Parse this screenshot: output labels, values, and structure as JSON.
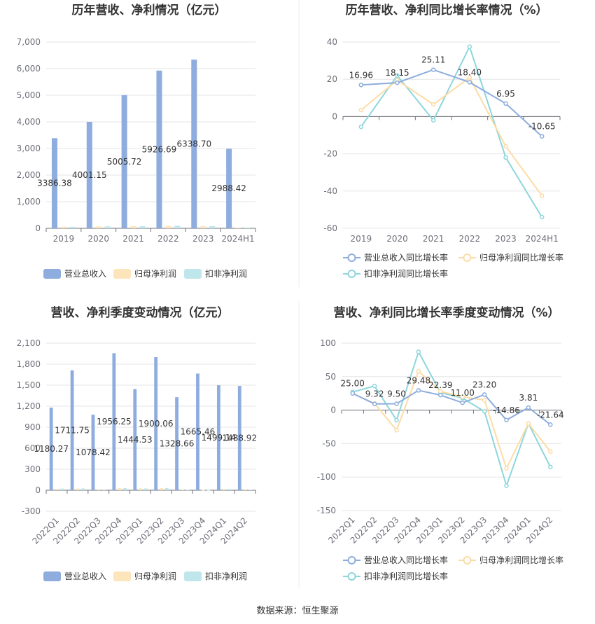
{
  "source_note": "数据来源：恒生聚源",
  "colors": {
    "revenue": "#8eadde",
    "net_profit": "#fde5bb",
    "deducted_profit": "#bfe6ea",
    "revenue_line": "#8eadde",
    "profit_line": "#fcdca6",
    "deducted_line": "#8ed6dc",
    "grid": "#e6e6e6",
    "axis": "#6e7079"
  },
  "chart_data": [
    {
      "id": "annual_amount",
      "type": "bar",
      "title": "历年营收、净利情况（亿元）",
      "categories": [
        "2019",
        "2020",
        "2021",
        "2022",
        "2023",
        "2024H1"
      ],
      "yticks": [
        "0",
        "1,000",
        "2,000",
        "3,000",
        "4,000",
        "5,000",
        "6,000",
        "7,000"
      ],
      "ylim": [
        0,
        7000
      ],
      "series": [
        {
          "name": "营业总收入",
          "values": [
            3386.38,
            4001.15,
            5005.72,
            5926.69,
            6338.7,
            2988.42
          ],
          "labels": [
            "3386.38",
            "4001.15",
            "5005.72",
            "5926.69",
            "6338.70",
            "2988.42"
          ]
        },
        {
          "name": "归母净利润",
          "values": [
            62.0,
            73.0,
            78.0,
            92.0,
            78.0,
            27.0
          ]
        },
        {
          "name": "扣非净利润",
          "values": [
            60.0,
            72.0,
            78.0,
            100.0,
            80.0,
            25.0
          ]
        }
      ],
      "legend": [
        "营业总收入",
        "归母净利润",
        "扣非净利润"
      ]
    },
    {
      "id": "annual_growth",
      "type": "line",
      "title": "历年营收、净利同比增长率情况（%）",
      "categories": [
        "2019",
        "2020",
        "2021",
        "2022",
        "2023",
        "2024H1"
      ],
      "yticks": [
        "-60",
        "-40",
        "-20",
        "0",
        "20",
        "40"
      ],
      "ylim": [
        -60,
        40
      ],
      "series": [
        {
          "name": "营业总收入同比增长率",
          "values": [
            16.96,
            18.15,
            25.11,
            18.4,
            6.95,
            -10.65
          ],
          "labels": [
            "16.96",
            "18.15",
            "25.11",
            "18.40",
            "6.95",
            "-10.65"
          ]
        },
        {
          "name": "归母净利润同比增长率",
          "values": [
            3.5,
            19.5,
            6.5,
            21.0,
            -16.0,
            -42.5
          ]
        },
        {
          "name": "扣非净利润同比增长率",
          "values": [
            -5.5,
            22.0,
            -2.0,
            37.5,
            -22.0,
            -54.0
          ]
        }
      ],
      "legend": [
        "营业总收入同比增长率",
        "归母净利润同比增长率",
        "扣非净利润同比增长率"
      ]
    },
    {
      "id": "quarterly_amount",
      "type": "bar",
      "title": "营收、净利季度变动情况（亿元）",
      "categories": [
        "2022Q1",
        "2022Q2",
        "2022Q3",
        "2022Q4",
        "2023Q1",
        "2023Q2",
        "2023Q3",
        "2023Q4",
        "2024Q1",
        "2024Q2"
      ],
      "yticks": [
        "-300",
        "0",
        "300",
        "600",
        "900",
        "1,200",
        "1,500",
        "1,800",
        "2,100"
      ],
      "ylim": [
        -300,
        2100
      ],
      "series": [
        {
          "name": "营业总收入",
          "values": [
            1180.27,
            1711.75,
            1078.42,
            1956.25,
            1444.53,
            1900.06,
            1328.66,
            1665.46,
            1499.14,
            1488.92
          ],
          "labels": [
            "1180.27",
            "1711.75",
            "1078.42",
            "1956.25",
            "1444.53",
            "1900.06",
            "1328.66",
            "1665.46",
            "1499.14",
            "1488.92"
          ]
        },
        {
          "name": "归母净利润",
          "values": [
            22,
            24,
            12,
            30,
            28,
            30,
            8,
            4,
            18,
            10
          ]
        },
        {
          "name": "扣非净利润",
          "values": [
            24,
            26,
            8,
            30,
            26,
            32,
            7,
            3,
            18,
            8
          ]
        }
      ],
      "legend": [
        "营业总收入",
        "归母净利润",
        "扣非净利润"
      ]
    },
    {
      "id": "quarterly_growth",
      "type": "line",
      "title": "营收、净利同比增长率季度变动情况（%）",
      "categories": [
        "2022Q1",
        "2022Q2",
        "2022Q3",
        "2022Q4",
        "2023Q1",
        "2023Q2",
        "2023Q3",
        "2023Q4",
        "2024Q1",
        "2024Q2"
      ],
      "yticks": [
        "-150",
        "-100",
        "-50",
        "0",
        "50",
        "100"
      ],
      "ylim": [
        -150,
        100
      ],
      "series": [
        {
          "name": "营业总收入同比增长率",
          "values": [
            25.0,
            9.32,
            9.5,
            29.48,
            22.39,
            11.0,
            23.2,
            -14.86,
            3.81,
            -21.64
          ],
          "labels": [
            "25.00",
            "9.32",
            "9.50",
            "29.48",
            "22.39",
            "11.00",
            "23.20",
            "-14.86",
            "3.81",
            "-21.64"
          ]
        },
        {
          "name": "归母净利润同比增长率",
          "values": [
            25,
            10,
            -30,
            58,
            28,
            20,
            15,
            -87,
            -20,
            -62
          ]
        },
        {
          "name": "扣非净利润同比增长率",
          "values": [
            27,
            36,
            -15,
            87,
            26,
            18,
            -2,
            -113,
            -20,
            -85
          ]
        }
      ],
      "legend": [
        "营业总收入同比增长率",
        "归母净利润同比增长率",
        "扣非净利润同比增长率"
      ]
    }
  ]
}
